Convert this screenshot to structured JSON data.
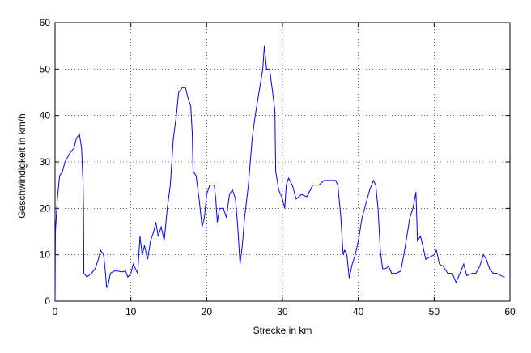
{
  "chart_data": {
    "type": "line",
    "xlabel": "Strecke in km",
    "ylabel": "Geschwindigkeit in km/h",
    "x": [
      0,
      0.05,
      0.3,
      0.6,
      1.0,
      1.3,
      2.0,
      2.5,
      2.8,
      3.2,
      3.5,
      3.7,
      3.75,
      3.8,
      4.2,
      4.8,
      5.3,
      5.7,
      6.0,
      6.4,
      6.6,
      6.8,
      7.0,
      7.3,
      7.8,
      8.3,
      8.8,
      9.3,
      9.6,
      10.0,
      10.3,
      10.6,
      10.9,
      11.2,
      11.5,
      11.8,
      12.2,
      12.6,
      13.0,
      13.3,
      13.6,
      14.0,
      14.4,
      14.8,
      15.2,
      15.6,
      16.0,
      16.3,
      16.8,
      17.2,
      17.5,
      17.9,
      18.1,
      18.2,
      18.6,
      19.0,
      19.4,
      19.7,
      20.0,
      20.4,
      21.0,
      21.2,
      21.4,
      21.7,
      22.2,
      22.6,
      23.0,
      23.4,
      23.8,
      24.1,
      24.4,
      24.7,
      25.0,
      25.5,
      26.0,
      26.4,
      27.0,
      27.4,
      27.6,
      27.9,
      28.3,
      28.7,
      29.0,
      29.1,
      29.5,
      30.0,
      30.3,
      30.5,
      30.8,
      31.3,
      31.8,
      32.5,
      33.2,
      34.0,
      34.8,
      35.5,
      36.3,
      37.0,
      37.3,
      37.7,
      38.0,
      38.2,
      38.5,
      38.8,
      39.2,
      39.6,
      40.0,
      40.5,
      41.0,
      41.5,
      42.0,
      42.3,
      42.6,
      42.9,
      43.2,
      43.6,
      44.0,
      44.4,
      45.0,
      45.6,
      46.0,
      46.4,
      46.8,
      47.2,
      47.6,
      47.8,
      48.2,
      48.5,
      48.9,
      49.4,
      50.0,
      50.3,
      50.7,
      51.2,
      51.8,
      52.4,
      52.9,
      53.4,
      53.9,
      54.3,
      55.0,
      55.5,
      56.0,
      56.5,
      56.9,
      57.3,
      57.8,
      58.3,
      58.8,
      59.3
    ],
    "series": [
      {
        "color": "#0000ff",
        "values": [
          0,
          15,
          22,
          27,
          28,
          30,
          32,
          33,
          35,
          36,
          33,
          25,
          20,
          6,
          5.2,
          6,
          7,
          9,
          11,
          10,
          7,
          3,
          3.5,
          6,
          6.5,
          6.5,
          6.3,
          6.5,
          5.2,
          6,
          8,
          7,
          6,
          14,
          10,
          12,
          9,
          13,
          15,
          17,
          14,
          16,
          13,
          20,
          25,
          35,
          40,
          45,
          46,
          46,
          44,
          42,
          36,
          28,
          27,
          22,
          16,
          18,
          23,
          25,
          25,
          22,
          17,
          20,
          20,
          18,
          23,
          24,
          22,
          16,
          8,
          12,
          18,
          25,
          35,
          40,
          46,
          50,
          55,
          50,
          50,
          45,
          41,
          28,
          24,
          22,
          20,
          25,
          26.5,
          25,
          22,
          23,
          22.5,
          25,
          25,
          26,
          26,
          26,
          25,
          18,
          10,
          11,
          10,
          5,
          8,
          10,
          13,
          18,
          21,
          24,
          26,
          25,
          20,
          11,
          7,
          7,
          7.5,
          6,
          6,
          6.5,
          10,
          14,
          18,
          20,
          23.5,
          13,
          14,
          12,
          9,
          9.5,
          10,
          11,
          8,
          7.5,
          6,
          6,
          4,
          6,
          8,
          5.5,
          6,
          6,
          7.5,
          10,
          9,
          7,
          6,
          6,
          5.5,
          5.2
        ]
      }
    ],
    "xlim": [
      0,
      60
    ],
    "ylim": [
      0,
      60
    ],
    "xticks": [
      0,
      10,
      20,
      30,
      40,
      50,
      60
    ],
    "yticks": [
      0,
      10,
      20,
      30,
      40,
      50,
      60
    ],
    "grid": true
  }
}
